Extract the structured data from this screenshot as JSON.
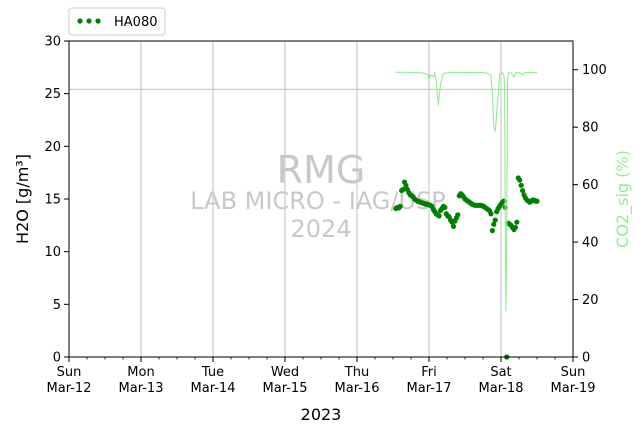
{
  "chart_data": {
    "type": "scatter",
    "xlabel": "2023",
    "ylabel_left": "H2O [g/m³]",
    "ylabel_right": "CO2_sig (%)",
    "ylim_left": [
      0,
      30
    ],
    "ylim_right": [
      0,
      110
    ],
    "xlim_days": [
      0,
      7
    ],
    "x_ticks": [
      {
        "day": "Sun",
        "date": "Mar-12"
      },
      {
        "day": "Mon",
        "date": "Mar-13"
      },
      {
        "day": "Tue",
        "date": "Mar-14"
      },
      {
        "day": "Wed",
        "date": "Mar-15"
      },
      {
        "day": "Thu",
        "date": "Mar-16"
      },
      {
        "day": "Fri",
        "date": "Mar-17"
      },
      {
        "day": "Sat",
        "date": "Mar-18"
      },
      {
        "day": "Sun",
        "date": "Mar-19"
      }
    ],
    "y_ticks_left": [
      0,
      5,
      10,
      15,
      20,
      25,
      30
    ],
    "y_ticks_right": [
      0,
      20,
      40,
      60,
      80,
      100
    ],
    "reference_line_h2o": 25.4,
    "grid": "vertical",
    "legend": {
      "position": "top-left",
      "label": "HA080",
      "color": "#008000"
    },
    "watermark": {
      "line1": "RMG",
      "line2": "LAB MICRO - IAG/USP",
      "line3": "2024"
    },
    "series": [
      {
        "name": "HA080",
        "axis": "left",
        "color": "#008000",
        "points": [
          [
            4.54,
            14.1
          ],
          [
            4.56,
            14.2
          ],
          [
            4.58,
            14.15
          ],
          [
            4.6,
            14.3
          ],
          [
            4.62,
            15.8
          ],
          [
            4.64,
            15.9
          ],
          [
            4.66,
            16.6
          ],
          [
            4.68,
            16.3
          ],
          [
            4.7,
            15.9
          ],
          [
            4.72,
            15.6
          ],
          [
            4.74,
            15.4
          ],
          [
            4.76,
            15.3
          ],
          [
            4.78,
            15.2
          ],
          [
            4.8,
            15.0
          ],
          [
            4.82,
            14.9
          ],
          [
            4.84,
            14.8
          ],
          [
            4.86,
            14.75
          ],
          [
            4.88,
            14.7
          ],
          [
            4.9,
            14.65
          ],
          [
            4.92,
            14.6
          ],
          [
            4.94,
            14.55
          ],
          [
            4.96,
            14.5
          ],
          [
            4.98,
            14.5
          ],
          [
            5.0,
            14.45
          ],
          [
            5.02,
            14.4
          ],
          [
            5.04,
            14.3
          ],
          [
            5.06,
            14.0
          ],
          [
            5.08,
            13.8
          ],
          [
            5.1,
            13.6
          ],
          [
            5.12,
            13.5
          ],
          [
            5.14,
            13.4
          ],
          [
            5.16,
            13.9
          ],
          [
            5.18,
            14.1
          ],
          [
            5.2,
            14.3
          ],
          [
            5.22,
            14.2
          ],
          [
            5.24,
            13.6
          ],
          [
            5.26,
            13.4
          ],
          [
            5.28,
            13.3
          ],
          [
            5.3,
            13.0
          ],
          [
            5.32,
            12.8
          ],
          [
            5.34,
            12.4
          ],
          [
            5.36,
            12.9
          ],
          [
            5.38,
            13.2
          ],
          [
            5.4,
            13.5
          ],
          [
            5.42,
            15.3
          ],
          [
            5.44,
            15.5
          ],
          [
            5.46,
            15.4
          ],
          [
            5.48,
            15.2
          ],
          [
            5.5,
            15.0
          ],
          [
            5.52,
            14.9
          ],
          [
            5.54,
            14.8
          ],
          [
            5.56,
            14.7
          ],
          [
            5.58,
            14.6
          ],
          [
            5.6,
            14.5
          ],
          [
            5.62,
            14.45
          ],
          [
            5.64,
            14.4
          ],
          [
            5.66,
            14.4
          ],
          [
            5.68,
            14.4
          ],
          [
            5.7,
            14.4
          ],
          [
            5.72,
            14.4
          ],
          [
            5.74,
            14.35
          ],
          [
            5.76,
            14.3
          ],
          [
            5.78,
            14.2
          ],
          [
            5.8,
            14.1
          ],
          [
            5.82,
            14.0
          ],
          [
            5.84,
            13.9
          ],
          [
            5.86,
            13.6
          ],
          [
            5.88,
            12.0
          ],
          [
            5.9,
            12.6
          ],
          [
            5.92,
            13.0
          ],
          [
            5.94,
            13.8
          ],
          [
            5.96,
            14.1
          ],
          [
            5.98,
            14.3
          ],
          [
            6.0,
            14.5
          ],
          [
            6.02,
            14.7
          ],
          [
            6.04,
            14.8
          ],
          [
            6.06,
            14.2
          ],
          [
            6.08,
            0.0
          ],
          [
            6.1,
            12.7
          ],
          [
            6.12,
            12.6
          ],
          [
            6.14,
            12.5
          ],
          [
            6.16,
            12.3
          ],
          [
            6.18,
            12.1
          ],
          [
            6.2,
            12.3
          ],
          [
            6.22,
            12.8
          ],
          [
            6.24,
            17.0
          ],
          [
            6.26,
            16.8
          ],
          [
            6.28,
            16.3
          ],
          [
            6.3,
            15.8
          ],
          [
            6.32,
            15.4
          ],
          [
            6.34,
            15.1
          ],
          [
            6.36,
            14.9
          ],
          [
            6.38,
            14.8
          ],
          [
            6.4,
            14.7
          ],
          [
            6.42,
            14.8
          ],
          [
            6.44,
            14.9
          ],
          [
            6.46,
            14.9
          ],
          [
            6.48,
            14.8
          ],
          [
            6.5,
            14.8
          ]
        ]
      },
      {
        "name": "CO2_sig",
        "axis": "right",
        "color": "#90ee90",
        "points": [
          [
            4.54,
            99.1
          ],
          [
            4.7,
            99.1
          ],
          [
            4.9,
            98.9
          ],
          [
            4.98,
            98.5
          ],
          [
            5.0,
            96.5
          ],
          [
            5.02,
            98.2
          ],
          [
            5.06,
            97.5
          ],
          [
            5.08,
            98.9
          ],
          [
            5.1,
            96.0
          ],
          [
            5.13,
            87.5
          ],
          [
            5.16,
            95.0
          ],
          [
            5.2,
            98.7
          ],
          [
            5.3,
            99.1
          ],
          [
            5.5,
            99.0
          ],
          [
            5.7,
            99.0
          ],
          [
            5.8,
            98.9
          ],
          [
            5.86,
            98.0
          ],
          [
            5.88,
            92.0
          ],
          [
            5.9,
            80.0
          ],
          [
            5.92,
            78.5
          ],
          [
            5.95,
            88.0
          ],
          [
            5.98,
            98.5
          ],
          [
            6.02,
            99.0
          ],
          [
            6.04,
            98.2
          ],
          [
            6.05,
            94.0
          ],
          [
            6.06,
            45.0
          ],
          [
            6.07,
            16.0
          ],
          [
            6.08,
            40.0
          ],
          [
            6.09,
            96.0
          ],
          [
            6.1,
            98.8
          ],
          [
            6.14,
            98.9
          ],
          [
            6.18,
            97.5
          ],
          [
            6.2,
            98.9
          ],
          [
            6.26,
            99.0
          ],
          [
            6.3,
            98.2
          ],
          [
            6.33,
            99.0
          ],
          [
            6.4,
            99.0
          ],
          [
            6.5,
            99.0
          ]
        ]
      }
    ]
  }
}
